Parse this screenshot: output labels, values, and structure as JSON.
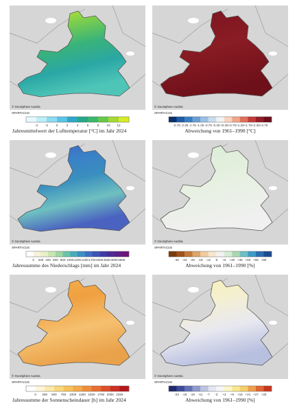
{
  "credit": "© GeoSphere Austria",
  "source": "SPARTACUS",
  "panels": [
    {
      "caption": "Jahresmittelwert der Lufttemperatur [°C] im Jahr 2024",
      "labels": [
        "-4",
        "-2",
        "0",
        "2",
        "4",
        "6",
        "8",
        "10",
        "12"
      ],
      "colors": [
        "#e6f9ff",
        "#bdeefa",
        "#8cdcf2",
        "#59c5e6",
        "#2fa8c8",
        "#27a88a",
        "#3bb86a",
        "#68c84a",
        "#a3da36",
        "#d8eb27"
      ],
      "map_colors": [
        "#d8ef2a",
        "#7fd04a",
        "#39b37a",
        "#2aa7a5",
        "#4fc5b8"
      ]
    },
    {
      "caption": "Abweichung von 1961–1990 [°C]",
      "labels": [
        "-2.75",
        "-2.25",
        "-1.75",
        "-1.25",
        "-0.75",
        "-0.25",
        "+0.25",
        "+0.75",
        "+1.25",
        "+1.75",
        "+2.25",
        "+2.75"
      ],
      "colors": [
        "#08306b",
        "#1c5ca8",
        "#3a7dc2",
        "#6a9fd4",
        "#9cc0e4",
        "#c9dcef",
        "#f2f2f2",
        "#f9d3c1",
        "#f1a58a",
        "#e0705a",
        "#c23b3b",
        "#951d26",
        "#6b0f1a"
      ],
      "map_colors": [
        "#7a1420",
        "#8a1c24",
        "#6e1019"
      ]
    },
    {
      "caption": "Jahressumme des Niederschlags [mm] im Jahr 2024",
      "labels": [
        "0",
        "200",
        "400",
        "600",
        "800",
        "1000",
        "1200",
        "1400",
        "1700",
        "2000",
        "2500",
        "3000",
        "3500"
      ],
      "colors": [
        "#ffffff",
        "#f6f2dc",
        "#e8f0c8",
        "#c8e6b0",
        "#9fd6a4",
        "#6cc3a8",
        "#47adb8",
        "#3b8fc6",
        "#3a6fc4",
        "#3c52b5",
        "#3f3aa5",
        "#4b2c95",
        "#5c1f87",
        "#6f1478"
      ],
      "map_colors": [
        "#3e5ec0",
        "#3a7fc8",
        "#3a8fbf",
        "#6fc0c0",
        "#4a62c0"
      ]
    },
    {
      "caption": "Abweichung von 1961–1990 [%]",
      "labels": [
        "-40",
        "-33",
        "-26",
        "-19",
        "-12",
        "-5",
        "+5",
        "+20",
        "+35",
        "+50",
        "+65",
        "+80"
      ],
      "colors": [
        "#7a3b0c",
        "#a0521a",
        "#c27a3a",
        "#dea469",
        "#efcba0",
        "#f7e6cc",
        "#f2f2f2",
        "#d8ecd4",
        "#a9d8b2",
        "#6fbfc4",
        "#3e9bc7",
        "#2a6fb0",
        "#1d4b8f"
      ],
      "map_colors": [
        "#d8ecd4",
        "#e6f0e0",
        "#f0f0f0"
      ]
    },
    {
      "caption": "Jahressumme der  Sonnenscheindauer [h] im Jahr 2024",
      "labels": [
        "0",
        "250",
        "500",
        "750",
        "1000",
        "1250",
        "1500",
        "1750",
        "2000",
        "2250"
      ],
      "colors": [
        "#ffffff",
        "#fdf6d8",
        "#fde9a8",
        "#fbd67a",
        "#f8c25a",
        "#f5a94a",
        "#f08e3c",
        "#ea6f32",
        "#de4e2a",
        "#cc2f24",
        "#b5161c"
      ],
      "map_colors": [
        "#f5b24e",
        "#f0a040",
        "#f5c070",
        "#eaa24a"
      ]
    },
    {
      "caption": "Abweichung von 1961–1990 [%]",
      "labels": [
        "-23",
        "-19",
        "-15",
        "-11",
        "-7",
        "-3",
        "+3",
        "+9",
        "+15",
        "+21",
        "+27",
        "+33"
      ],
      "colors": [
        "#1f2a6b",
        "#3b4a9a",
        "#6471b6",
        "#8f9acc",
        "#bcc3e0",
        "#e2e5f2",
        "#f6f6f6",
        "#fbf6c8",
        "#f8e88f",
        "#f5cf6a",
        "#ef9f4c",
        "#e06632",
        "#c8351f"
      ],
      "map_colors": [
        "#f8f2b0",
        "#f4f0d0",
        "#e8e8f0",
        "#b8c0e0"
      ]
    }
  ]
}
